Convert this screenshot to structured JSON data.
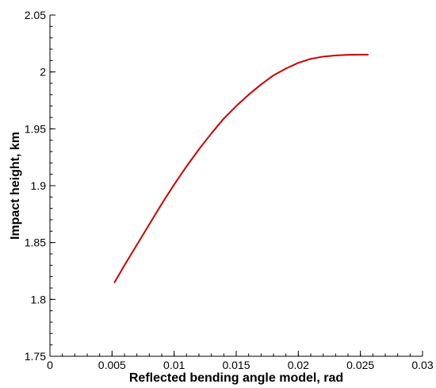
{
  "chart_data": {
    "type": "line",
    "title": "",
    "xlabel": "Reflected bending angle model, rad",
    "ylabel": "Impact height, km",
    "xlim": [
      0,
      0.03
    ],
    "ylim": [
      1.75,
      2.05
    ],
    "x_major_ticks": [
      0,
      0.005,
      0.01,
      0.015,
      0.02,
      0.025,
      0.03
    ],
    "x_tick_labels": [
      "0",
      "0.005",
      "0.01",
      "0.015",
      "0.02",
      "0.025",
      "0.03"
    ],
    "y_major_ticks": [
      1.75,
      1.8,
      1.85,
      1.9,
      1.95,
      2.0,
      2.05
    ],
    "y_tick_labels": [
      "1.75",
      "1.8",
      "1.85",
      "1.9",
      "1.95",
      "2",
      "2.05"
    ],
    "x_minor_step": 0.001,
    "y_minor_step": 0.01,
    "grid": false,
    "legend": "none",
    "series": [
      {
        "color": "#cc0000",
        "x": [
          0.0052,
          0.006,
          0.007,
          0.008,
          0.009,
          0.01,
          0.011,
          0.012,
          0.013,
          0.014,
          0.015,
          0.016,
          0.017,
          0.018,
          0.019,
          0.02,
          0.021,
          0.022,
          0.023,
          0.024,
          0.025,
          0.0256
        ],
        "y": [
          1.815,
          1.83,
          1.848,
          1.866,
          1.884,
          1.901,
          1.917,
          1.932,
          1.946,
          1.959,
          1.97,
          1.98,
          1.989,
          1.997,
          2.003,
          2.008,
          2.0115,
          2.0135,
          2.0145,
          2.015,
          2.0152,
          2.0152
        ]
      }
    ]
  }
}
